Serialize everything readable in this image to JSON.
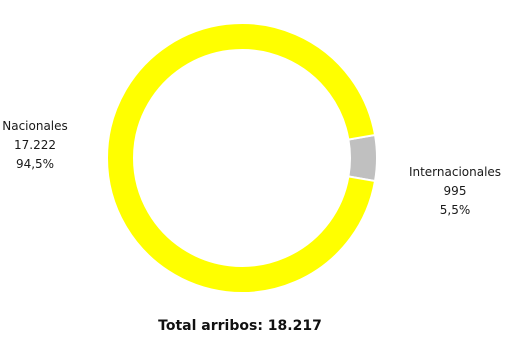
{
  "chart_data": {
    "type": "pie",
    "style": "donut",
    "title": "",
    "slices": [
      {
        "label": "Nacionales",
        "value": 17222,
        "value_text": "17.222",
        "percent_text": "94,5%",
        "color": "#ffff00"
      },
      {
        "label": "Internacionales",
        "value": 995,
        "value_text": "995",
        "percent_text": "5,5%",
        "color": "#c0c0c0"
      }
    ],
    "footer": "Total arribos: 18.217",
    "legend": "none"
  }
}
